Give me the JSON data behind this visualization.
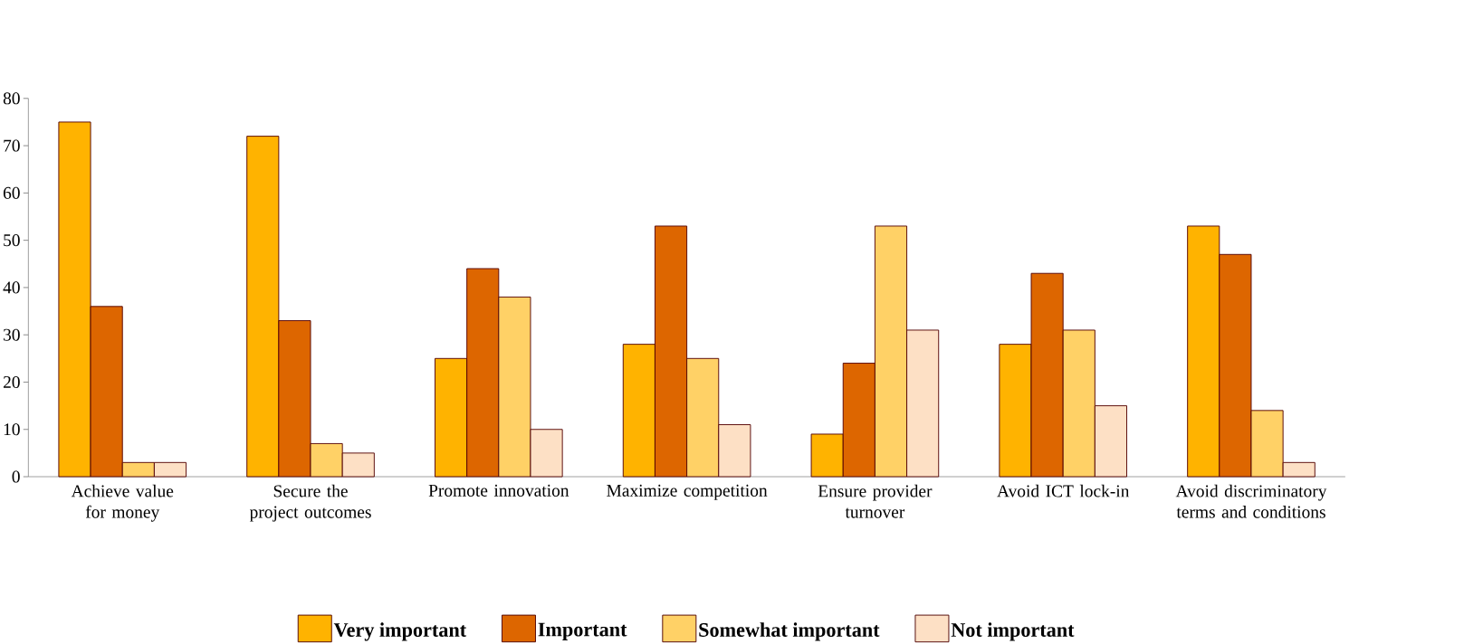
{
  "chart_data": {
    "type": "bar",
    "categories": [
      "Achieve value for money",
      "Secure the project outcomes",
      "Promote innovation",
      "Maximize competition",
      "Ensure provider turnover",
      "Avoid ICT lock-in",
      "Avoid discriminatory terms and conditions"
    ],
    "series": [
      {
        "name": "Very important",
        "color": "#ffb300",
        "values": [
          75,
          72,
          25,
          28,
          9,
          28,
          53
        ]
      },
      {
        "name": "Important",
        "color": "#dd6600",
        "values": [
          36,
          33,
          44,
          53,
          24,
          43,
          47
        ]
      },
      {
        "name": "Somewhat important",
        "color": "#ffd166",
        "values": [
          3,
          7,
          38,
          25,
          53,
          31,
          14
        ]
      },
      {
        "name": "Not important",
        "color": "#fde0c5",
        "values": [
          3,
          5,
          10,
          11,
          31,
          15,
          3
        ]
      }
    ],
    "ylim": [
      0,
      80
    ],
    "yticks": [
      0,
      10,
      20,
      30,
      40,
      50,
      60,
      70,
      80
    ],
    "legend": "bottom",
    "grid": false
  }
}
